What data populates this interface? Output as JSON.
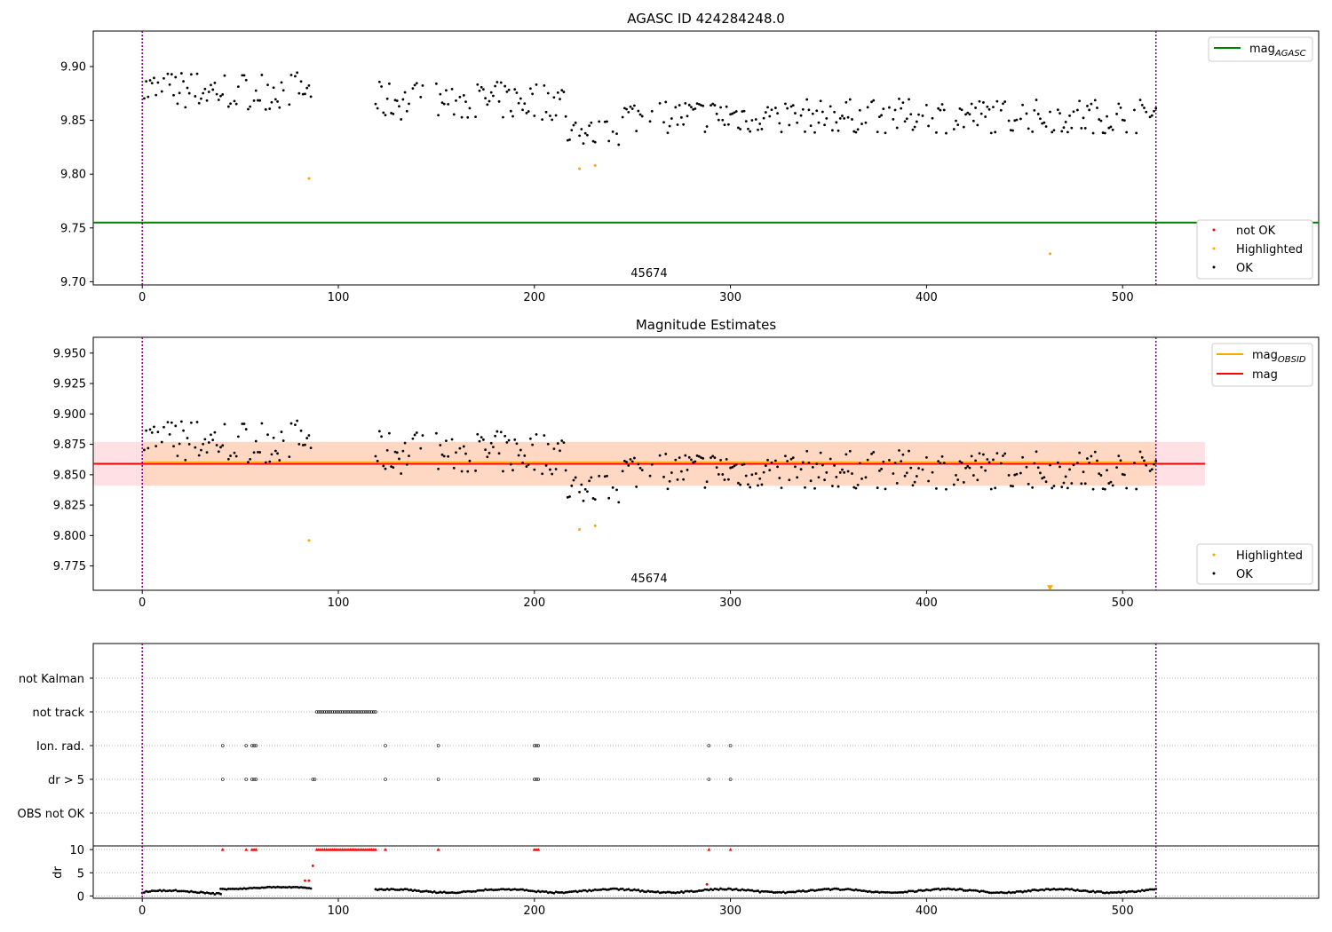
{
  "colors": {
    "ok": "#000000",
    "highlighted": "#ffa500",
    "not_ok": "#ff0000",
    "mag_agasc": "#008000",
    "mag_obsid": "#ffa500",
    "mag": "#ff0000",
    "obs_boundary": "#800080",
    "band_obsid": "#ffd8c4",
    "band_mag": "#ffe0e4",
    "grid": "#b0b0b0"
  },
  "chart_data": [
    {
      "type": "scatter",
      "title": "AGASC ID 424284248.0",
      "xlim": [
        -25,
        600
      ],
      "ylim": [
        9.697,
        9.933
      ],
      "xticks": [
        "0",
        "100",
        "200",
        "300",
        "400",
        "500"
      ],
      "yticks": [
        "9.70",
        "9.75",
        "9.80",
        "9.85",
        "9.90"
      ],
      "obs_label": "45674",
      "obs_bounds": [
        0,
        517
      ],
      "mag_agasc": 9.755,
      "legend_lines": [
        {
          "label": "mag",
          "sub": "AGASC"
        }
      ],
      "legend_points": [
        {
          "label": "not OK"
        },
        {
          "label": "Highlighted"
        },
        {
          "label": "OK"
        }
      ],
      "series": [
        {
          "name": "OK",
          "segments": [
            {
              "x0": 0,
              "x1": 86,
              "center": 9.878,
              "amp": 0.018
            },
            {
              "x0": 119,
              "x1": 216,
              "center": 9.868,
              "amp": 0.018
            },
            {
              "x0": 216,
              "x1": 245,
              "center": 9.838,
              "amp": 0.012
            },
            {
              "x0": 245,
              "x1": 517,
              "center": 9.854,
              "amp": 0.016
            }
          ]
        },
        {
          "name": "Highlighted",
          "x": [
            85,
            223,
            231,
            463
          ],
          "y": [
            9.796,
            9.805,
            9.808,
            9.726
          ]
        }
      ]
    },
    {
      "type": "scatter",
      "title": "Magnitude Estimates",
      "xlim": [
        -25,
        600
      ],
      "ylim": [
        9.755,
        9.963
      ],
      "xticks": [
        "0",
        "100",
        "200",
        "300",
        "400",
        "500"
      ],
      "yticks": [
        "9.775",
        "9.800",
        "9.825",
        "9.850",
        "9.875",
        "9.900",
        "9.925",
        "9.950"
      ],
      "obs_label": "45674",
      "obs_bounds": [
        0,
        517
      ],
      "mag_obsid": 9.859,
      "mag": 9.859,
      "band": [
        9.841,
        9.877
      ],
      "legend_lines": [
        {
          "label": "mag",
          "sub": "OBSID"
        },
        {
          "label": "mag",
          "sub": ""
        }
      ],
      "legend_points": [
        {
          "label": "Highlighted"
        },
        {
          "label": "OK"
        }
      ],
      "series": [
        {
          "name": "OK",
          "segments": [
            {
              "x0": 0,
              "x1": 86,
              "center": 9.878,
              "amp": 0.018
            },
            {
              "x0": 119,
              "x1": 216,
              "center": 9.868,
              "amp": 0.018
            },
            {
              "x0": 216,
              "x1": 245,
              "center": 9.838,
              "amp": 0.012
            },
            {
              "x0": 245,
              "x1": 517,
              "center": 9.854,
              "amp": 0.016
            }
          ]
        },
        {
          "name": "Highlighted",
          "x": [
            85,
            223,
            231,
            463
          ],
          "y": [
            9.796,
            9.805,
            9.808,
            9.757
          ]
        }
      ]
    },
    {
      "type": "scatter",
      "title": "",
      "xlim": [
        -25,
        600
      ],
      "xticks": [
        "0",
        "100",
        "200",
        "300",
        "400",
        "500"
      ],
      "obs_bounds": [
        0,
        517
      ],
      "flag_rows": [
        "not Kalman",
        "not track",
        "Ion. rad.",
        "dr > 5",
        "OBS not OK"
      ],
      "flags": {
        "not track": [
          [
            89,
            119
          ]
        ],
        "Ion. rad.": [
          [
            41,
            41
          ],
          [
            53,
            53
          ],
          [
            56,
            58
          ],
          [
            124,
            124
          ],
          [
            151,
            151
          ],
          [
            200,
            202
          ],
          [
            289,
            289
          ],
          [
            300,
            300
          ]
        ],
        "dr > 5": [
          [
            41,
            41
          ],
          [
            53,
            53
          ],
          [
            56,
            58
          ],
          [
            87,
            88
          ],
          [
            124,
            124
          ],
          [
            151,
            151
          ],
          [
            200,
            202
          ],
          [
            289,
            289
          ],
          [
            300,
            300
          ]
        ]
      }
    },
    {
      "type": "scatter",
      "title": "",
      "xlim": [
        -25,
        600
      ],
      "ylim": [
        -0.5,
        10.8
      ],
      "ylabel": "dr",
      "xticks": [
        "0",
        "100",
        "200",
        "300",
        "400",
        "500"
      ],
      "yticks": [
        "0",
        "5",
        "10"
      ],
      "obs_bounds": [
        0,
        517
      ],
      "clipped_value": 10,
      "clipped_ranges": [
        [
          41,
          41
        ],
        [
          53,
          53
        ],
        [
          56,
          58
        ],
        [
          89,
          119
        ],
        [
          124,
          124
        ],
        [
          151,
          151
        ],
        [
          200,
          202
        ],
        [
          289,
          289
        ],
        [
          300,
          300
        ]
      ],
      "outliers": [
        {
          "x": 83,
          "y": 3.3
        },
        {
          "x": 85,
          "y": 3.3
        },
        {
          "x": 87,
          "y": 6.5
        },
        {
          "x": 288,
          "y": 2.5
        }
      ],
      "baseline": [
        {
          "x0": 0,
          "x1": 40,
          "center": 0.8,
          "amp": 0.6
        },
        {
          "x0": 40,
          "x1": 86,
          "center": 1.7,
          "amp": 0.4
        },
        {
          "x0": 119,
          "x1": 517,
          "center": 1.1,
          "amp": 0.6
        }
      ]
    }
  ]
}
